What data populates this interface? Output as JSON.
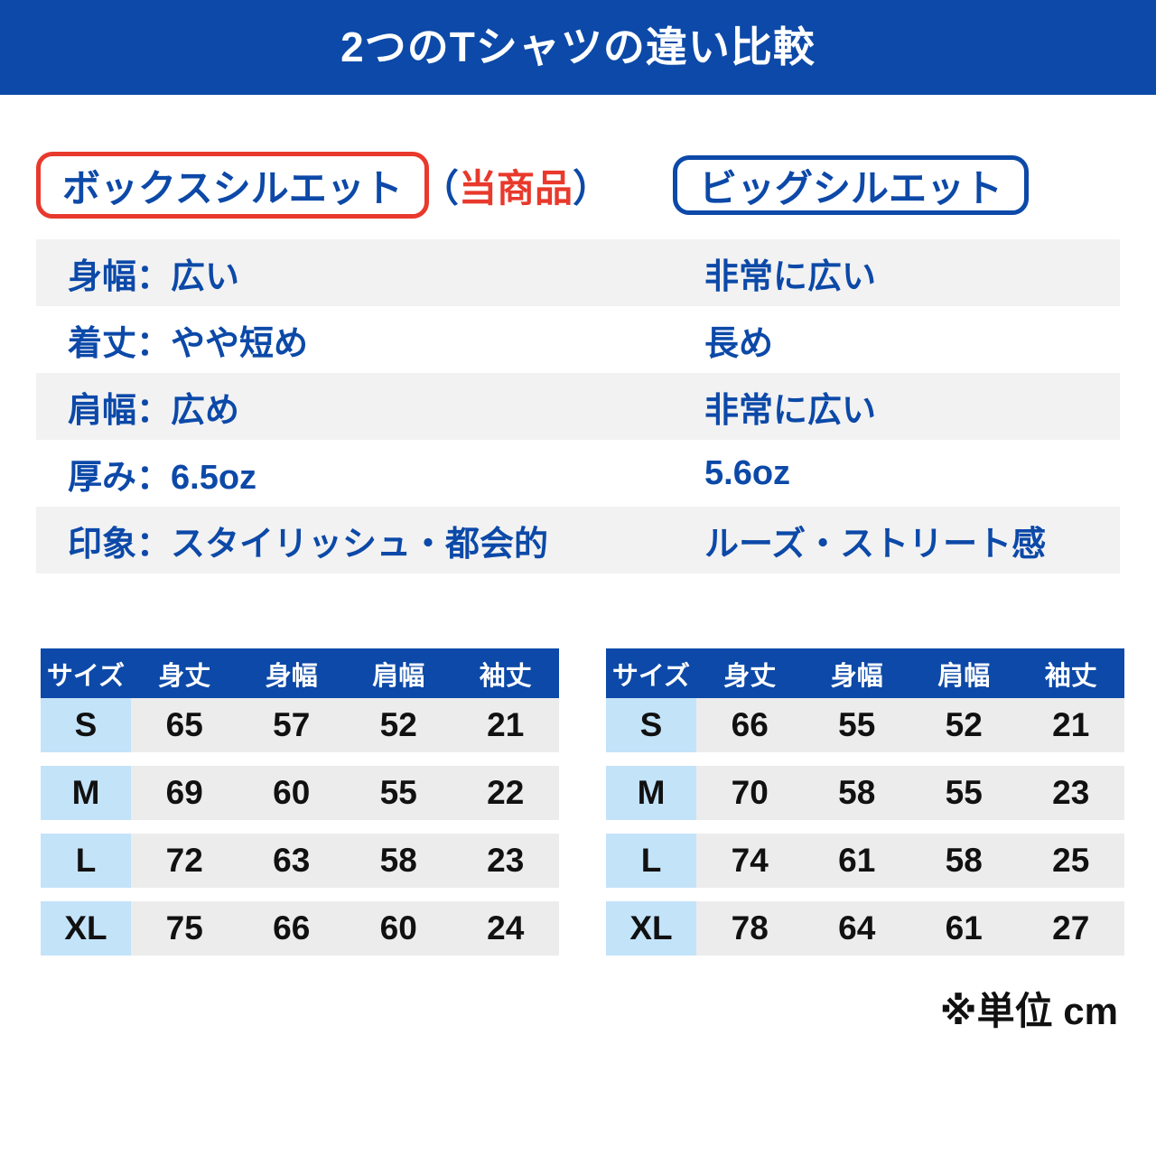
{
  "title": "2つのTシャツの違い比較",
  "colors": {
    "brand_blue": "#0c49a8",
    "accent_red": "#e8392c",
    "row_gray": "#f2f2f2",
    "cell_gray": "#ececec",
    "size_cell_blue": "#c3e3f9"
  },
  "products": {
    "left": {
      "name": "ボックスシルエット",
      "note_open": "（",
      "note_text": "当商品",
      "note_close": "）"
    },
    "right": {
      "name": "ビッグシルエット"
    }
  },
  "comparison": {
    "rows": [
      {
        "left": "身幅：広い",
        "right": "非常に広い"
      },
      {
        "left": "着丈：やや短め",
        "right": "長め"
      },
      {
        "left": "肩幅：広め",
        "right": "非常に広い"
      },
      {
        "left": "厚み：6.5oz",
        "right": "5.6oz"
      },
      {
        "left": "印象：スタイリッシュ・都会的",
        "right": "ルーズ・ストリート感"
      }
    ]
  },
  "size_tables": [
    {
      "product": "ボックスシルエット",
      "headers": [
        "サイズ",
        "身丈",
        "身幅",
        "肩幅",
        "袖丈"
      ],
      "rows": [
        {
          "size": "S",
          "values": [
            "65",
            "57",
            "52",
            "21"
          ]
        },
        {
          "size": "M",
          "values": [
            "69",
            "60",
            "55",
            "22"
          ]
        },
        {
          "size": "L",
          "values": [
            "72",
            "63",
            "58",
            "23"
          ]
        },
        {
          "size": "XL",
          "values": [
            "75",
            "66",
            "60",
            "24"
          ]
        }
      ]
    },
    {
      "product": "ビッグシルエット",
      "headers": [
        "サイズ",
        "身丈",
        "身幅",
        "肩幅",
        "袖丈"
      ],
      "rows": [
        {
          "size": "S",
          "values": [
            "66",
            "55",
            "52",
            "21"
          ]
        },
        {
          "size": "M",
          "values": [
            "70",
            "58",
            "55",
            "23"
          ]
        },
        {
          "size": "L",
          "values": [
            "74",
            "61",
            "58",
            "25"
          ]
        },
        {
          "size": "XL",
          "values": [
            "78",
            "64",
            "61",
            "27"
          ]
        }
      ]
    }
  ],
  "footnote": "※単位 cm"
}
